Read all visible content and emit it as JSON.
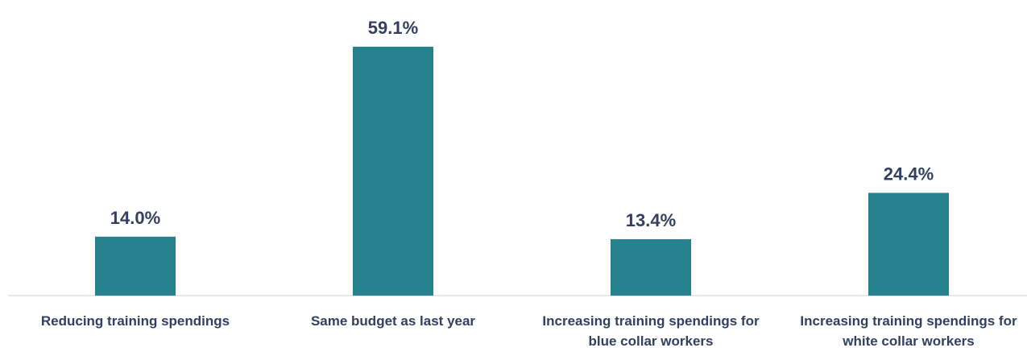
{
  "chart_data": {
    "type": "bar",
    "categories": [
      "Reducing training spendings",
      "Same budget as last year",
      "Increasing training spendings for blue collar workers",
      "Increasing training spendings for white collar workers"
    ],
    "values": [
      14.0,
      59.1,
      13.4,
      24.4
    ],
    "value_labels": [
      "14.0%",
      "59.1%",
      "13.4%",
      "24.4%"
    ],
    "color": "#26828e"
  }
}
